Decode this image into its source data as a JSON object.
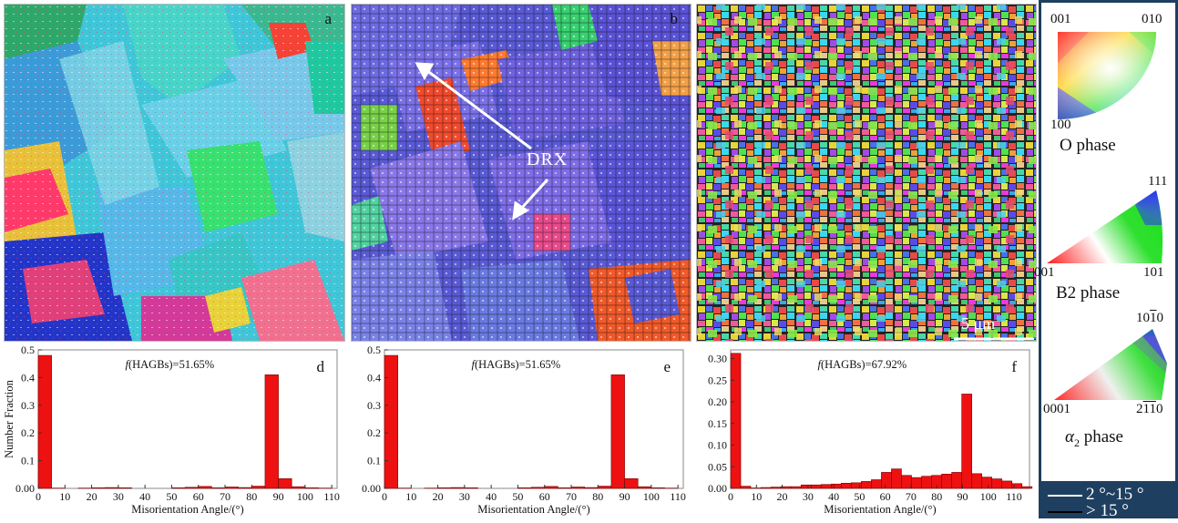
{
  "panels": {
    "a": {
      "label": "a"
    },
    "b": {
      "label": "b",
      "annotation": "DRX"
    },
    "c": {
      "scale_bar": "5 μm"
    }
  },
  "legend": {
    "o_phase": {
      "name": "O phase",
      "corner_top_left": "001",
      "corner_top_right": "010",
      "corner_bottom": "100"
    },
    "b2_phase": {
      "name": "B2 phase",
      "corner_top": "111",
      "corner_bottom_left": "001",
      "corner_bottom_right": "101"
    },
    "a2_phase": {
      "name_symbol": "α",
      "name_sub": "2",
      "name_rest": " phase",
      "corner_top": "1010",
      "corner_bottom_left": "0001",
      "corner_bottom_right": "2110"
    },
    "boundaries": [
      {
        "label": "2 °~15 °",
        "color": "#ffffff"
      },
      {
        "label": "> 15 °",
        "color": "#000000"
      }
    ]
  },
  "chart_data": [
    {
      "type": "bar",
      "panel": "d",
      "annotation_prefix": "f",
      "annotation": "(HAGBs)=51.65%",
      "xlabel": "Misorientation Angle/(°)",
      "ylabel": "Number Fraction",
      "xlim": [
        0,
        112
      ],
      "ylim": [
        0,
        0.5
      ],
      "xticks": [
        0,
        10,
        20,
        30,
        40,
        50,
        60,
        70,
        80,
        90,
        100,
        110
      ],
      "yticks": [
        "0.00",
        "0.1",
        "0.2",
        "0.3",
        "0.4",
        "0.5"
      ],
      "bar_width": 5,
      "bins": [
        2.5,
        7.5,
        12.5,
        17.5,
        22.5,
        27.5,
        32.5,
        37.5,
        42.5,
        47.5,
        52.5,
        57.5,
        62.5,
        67.5,
        72.5,
        77.5,
        82.5,
        87.5,
        92.5,
        97.5,
        102.5,
        107.5
      ],
      "values": [
        0.48,
        0.001,
        0,
        0.001,
        0.002,
        0.003,
        0.002,
        0,
        0,
        0,
        0.002,
        0.004,
        0.007,
        0.002,
        0.005,
        0.003,
        0.008,
        0.41,
        0.035,
        0.006,
        0.002,
        0.001
      ],
      "color": "#ee1111"
    },
    {
      "type": "bar",
      "panel": "e",
      "annotation_prefix": "f",
      "annotation": "(HAGBs)=51.65%",
      "xlabel": "Misorientation Angle/(°)",
      "ylabel": "",
      "xlim": [
        0,
        112
      ],
      "ylim": [
        0,
        0.5
      ],
      "xticks": [
        0,
        10,
        20,
        30,
        40,
        50,
        60,
        70,
        80,
        90,
        100,
        110
      ],
      "yticks": [
        "0.00",
        "0.1",
        "0.2",
        "0.3",
        "0.4",
        "0.5"
      ],
      "bar_width": 5,
      "bins": [
        2.5,
        7.5,
        12.5,
        17.5,
        22.5,
        27.5,
        32.5,
        37.5,
        42.5,
        47.5,
        52.5,
        57.5,
        62.5,
        67.5,
        72.5,
        77.5,
        82.5,
        87.5,
        92.5,
        97.5,
        102.5,
        107.5
      ],
      "values": [
        0.48,
        0.001,
        0,
        0.001,
        0.002,
        0.003,
        0.002,
        0,
        0,
        0,
        0.002,
        0.004,
        0.007,
        0.002,
        0.005,
        0.003,
        0.008,
        0.41,
        0.035,
        0.006,
        0.002,
        0.001
      ],
      "color": "#ee1111"
    },
    {
      "type": "bar",
      "panel": "f",
      "annotation_prefix": "f",
      "annotation": "(HAGBs)=67.92%",
      "xlabel": "Misorientation Angle/(°)",
      "ylabel": "",
      "xlim": [
        0,
        116
      ],
      "ylim": [
        0,
        0.32
      ],
      "xticks": [
        0,
        10,
        20,
        30,
        40,
        50,
        60,
        70,
        80,
        90,
        100,
        110
      ],
      "yticks": [
        "0.00",
        "0.05",
        "0.10",
        "0.15",
        "0.20",
        "0.25",
        "0.30"
      ],
      "bar_width": 3.9,
      "bins": [
        1.95,
        5.85,
        9.75,
        13.65,
        17.55,
        21.45,
        25.35,
        29.25,
        33.15,
        37.05,
        40.95,
        44.85,
        48.75,
        52.65,
        56.55,
        60.45,
        64.35,
        68.25,
        72.15,
        76.05,
        79.95,
        83.85,
        87.75,
        91.65,
        95.55,
        99.45,
        103.35,
        107.25,
        111.15,
        115.05
      ],
      "values": [
        0.312,
        0.005,
        0.001,
        0.002,
        0.003,
        0.004,
        0.004,
        0.008,
        0.008,
        0.009,
        0.01,
        0.012,
        0.013,
        0.016,
        0.02,
        0.037,
        0.045,
        0.03,
        0.025,
        0.028,
        0.03,
        0.033,
        0.037,
        0.218,
        0.034,
        0.026,
        0.022,
        0.017,
        0.011,
        0.004
      ],
      "color": "#ee1111"
    }
  ]
}
